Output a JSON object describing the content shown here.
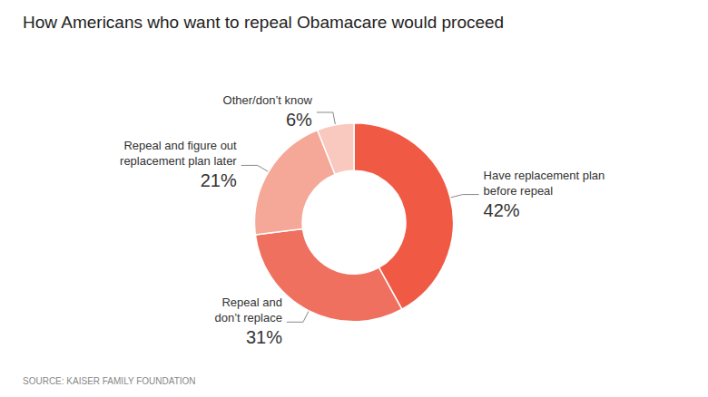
{
  "chart_data": {
    "type": "pie",
    "title": "How Americans who want to repeal Obamacare would proceed",
    "annotations": [
      "SOURCE: KAISER FAMILY FOUNDATION"
    ],
    "categories": [
      "Have replacement plan\nbefore repeal",
      "Repeal and\ndon’t replace",
      "Repeal and figure out\nreplacement plan later",
      "Other/don’t know"
    ],
    "values": [
      42,
      31,
      21,
      6
    ],
    "value_labels": [
      "42%",
      "31%",
      "21%",
      "6%"
    ],
    "data_labels": true,
    "colors": [
      "#F05A44",
      "#F07060",
      "#F5A898",
      "#F9C8BE"
    ]
  }
}
